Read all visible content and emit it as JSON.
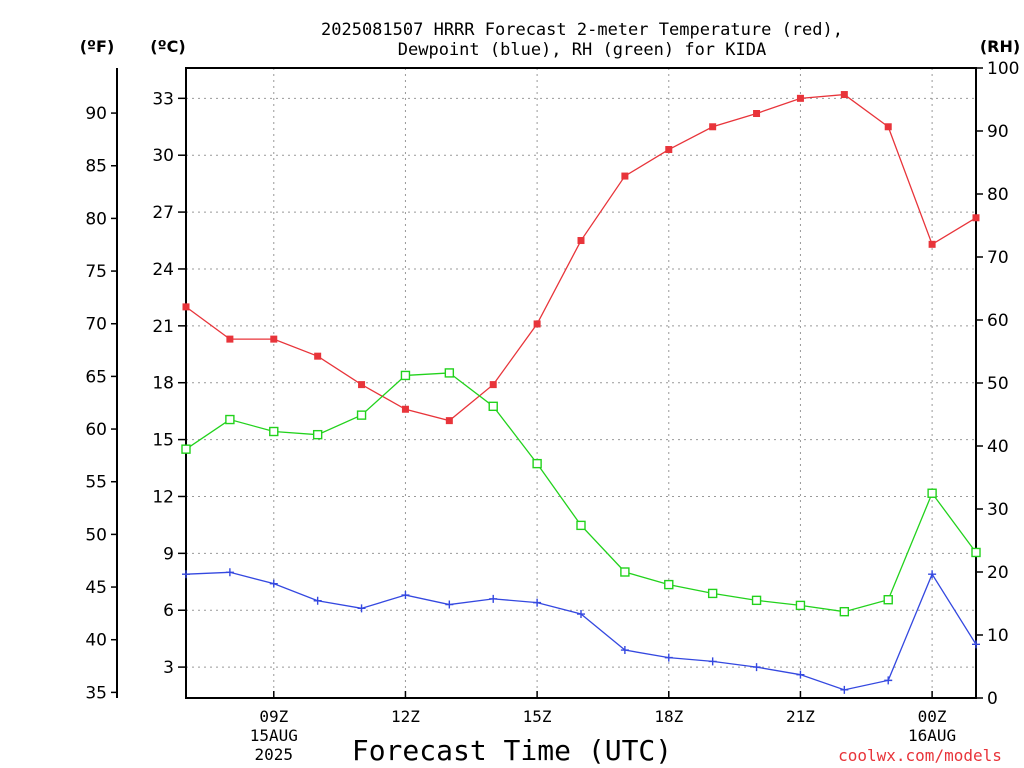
{
  "chart_data": {
    "type": "line",
    "title_line1": "2025081507 HRRR Forecast 2-meter Temperature (red),",
    "title_line2": "Dewpoint (blue), RH (green) for KIDA",
    "xlabel": "Forecast Time (UTC)",
    "unit_f": "(ºF)",
    "unit_c": "(ºC)",
    "unit_rh": "(RH)",
    "credit": "coolwx.com/models",
    "x_hours": [
      7,
      8,
      9,
      10,
      11,
      12,
      13,
      14,
      15,
      16,
      17,
      18,
      19,
      20,
      21,
      22,
      23,
      24,
      25
    ],
    "xlim": [
      7,
      25
    ],
    "celsius_ylim": [
      1.37,
      34.6
    ],
    "rh_ylim": [
      0,
      100
    ],
    "c_ticks": [
      3,
      6,
      9,
      12,
      15,
      18,
      21,
      24,
      27,
      30,
      33
    ],
    "f_ticks": [
      35,
      40,
      45,
      50,
      55,
      60,
      65,
      70,
      75,
      80,
      85,
      90
    ],
    "rh_ticks": [
      0,
      10,
      20,
      30,
      40,
      50,
      60,
      70,
      80,
      90,
      100
    ],
    "x_ticks": [
      {
        "hour": 9,
        "lines": [
          "09Z",
          "15AUG",
          "2025"
        ]
      },
      {
        "hour": 12,
        "lines": [
          "12Z"
        ]
      },
      {
        "hour": 15,
        "lines": [
          "15Z"
        ]
      },
      {
        "hour": 18,
        "lines": [
          "18Z"
        ]
      },
      {
        "hour": 21,
        "lines": [
          "21Z"
        ]
      },
      {
        "hour": 24,
        "lines": [
          "00Z",
          "16AUG"
        ]
      }
    ],
    "grid": true,
    "series": [
      {
        "name": "2-meter Temperature",
        "color": "#e8343a",
        "axis": "celsius",
        "marker": "filled-square",
        "values": [
          22.0,
          20.3,
          20.3,
          19.4,
          17.9,
          16.6,
          16.0,
          17.9,
          21.1,
          25.5,
          28.9,
          30.3,
          31.5,
          32.2,
          33.0,
          33.2,
          31.5,
          25.3,
          26.7
        ]
      },
      {
        "name": "Dewpoint",
        "color": "#3448e0",
        "axis": "celsius",
        "marker": "plus",
        "values": [
          7.9,
          8.0,
          7.4,
          6.5,
          6.1,
          6.8,
          6.3,
          6.6,
          6.4,
          5.8,
          3.9,
          3.5,
          3.3,
          3.0,
          2.6,
          1.8,
          2.3,
          7.9,
          4.2
        ]
      },
      {
        "name": "RH",
        "color": "#22d21c",
        "axis": "rh",
        "marker": "open-square",
        "values": [
          39.5,
          44.2,
          42.3,
          41.8,
          44.9,
          51.2,
          51.6,
          46.3,
          37.2,
          27.4,
          20.0,
          18.0,
          16.6,
          15.5,
          14.7,
          13.7,
          15.6,
          32.5,
          23.1
        ]
      }
    ]
  }
}
